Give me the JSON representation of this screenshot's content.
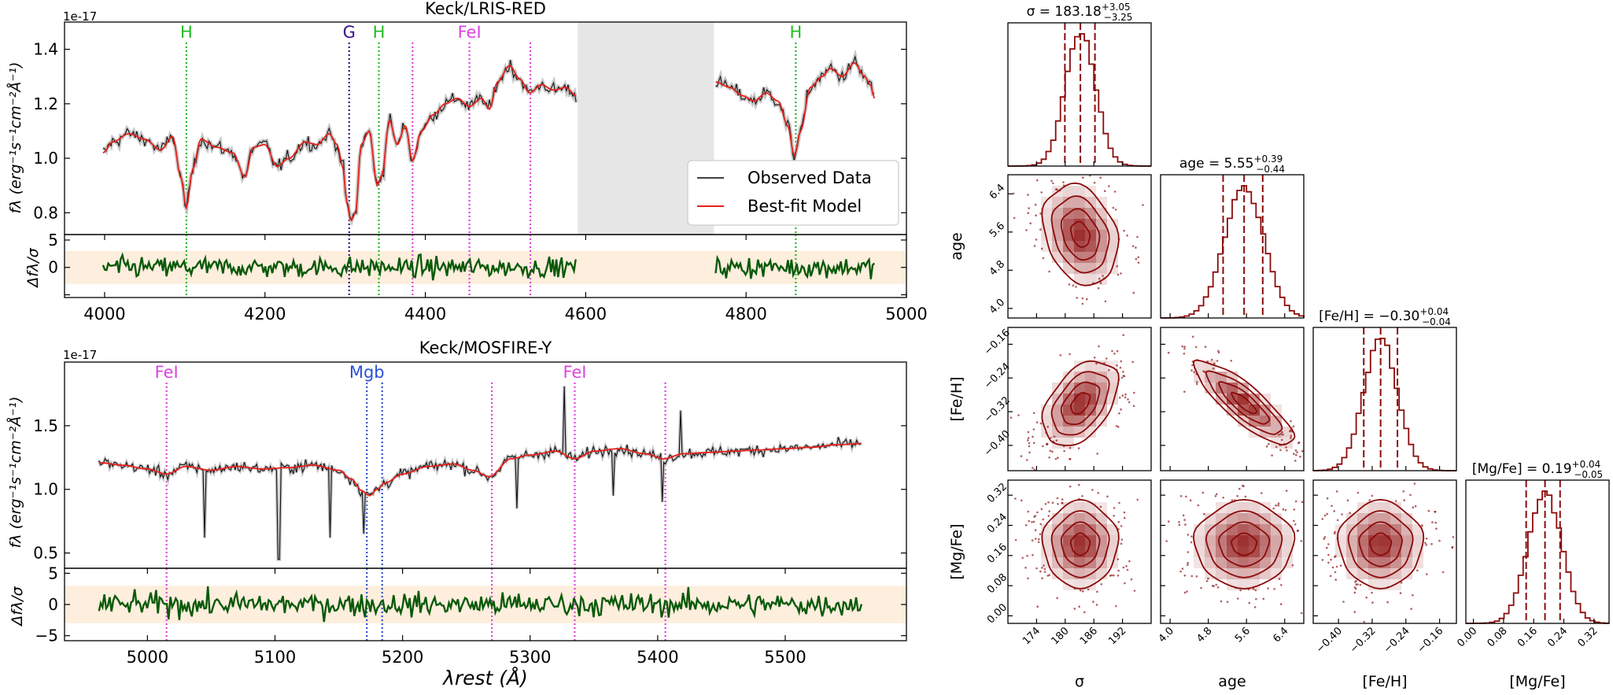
{
  "chart_data": [
    {
      "type": "line",
      "panel": "spectrum",
      "title": "Keck/LRIS-RED",
      "ylabel": "fλ (erg⁻¹s⁻¹cm⁻²Å⁻¹)",
      "y_offset_label": "1e-17",
      "xlim": [
        3950,
        5000
      ],
      "ylim": [
        0.72,
        1.5
      ],
      "yticks": [
        0.8,
        1.0,
        1.2,
        1.4
      ],
      "ytick_labels": [
        "0.8",
        "1.0",
        "1.2",
        "1.4"
      ],
      "masked_region": [
        4590,
        4760
      ],
      "segments": [
        [
          3998,
          4588
        ],
        [
          4762,
          4960
        ]
      ],
      "series": [
        {
          "name": "Observed Data",
          "color": "#000000"
        },
        {
          "name": "Best-fit Model",
          "color": "#e8201a"
        }
      ],
      "model_knots": [
        [
          3998,
          1.02
        ],
        [
          4010,
          1.06
        ],
        [
          4030,
          1.09
        ],
        [
          4050,
          1.07
        ],
        [
          4070,
          1.03
        ],
        [
          4085,
          1.08
        ],
        [
          4095,
          0.93
        ],
        [
          4102,
          0.82
        ],
        [
          4110,
          0.96
        ],
        [
          4120,
          1.07
        ],
        [
          4140,
          1.04
        ],
        [
          4160,
          1.02
        ],
        [
          4175,
          0.93
        ],
        [
          4185,
          1.04
        ],
        [
          4200,
          1.05
        ],
        [
          4215,
          0.97
        ],
        [
          4230,
          1.0
        ],
        [
          4250,
          1.06
        ],
        [
          4265,
          1.05
        ],
        [
          4280,
          1.09
        ],
        [
          4290,
          1.05
        ],
        [
          4297,
          0.97
        ],
        [
          4302,
          0.84
        ],
        [
          4307,
          0.77
        ],
        [
          4313,
          0.8
        ],
        [
          4320,
          1.05
        ],
        [
          4330,
          1.1
        ],
        [
          4340,
          0.9
        ],
        [
          4346,
          0.94
        ],
        [
          4355,
          1.14
        ],
        [
          4365,
          1.05
        ],
        [
          4375,
          1.12
        ],
        [
          4384,
          0.99
        ],
        [
          4395,
          1.1
        ],
        [
          4410,
          1.16
        ],
        [
          4425,
          1.2
        ],
        [
          4440,
          1.22
        ],
        [
          4455,
          1.19
        ],
        [
          4470,
          1.22
        ],
        [
          4480,
          1.18
        ],
        [
          4490,
          1.28
        ],
        [
          4505,
          1.34
        ],
        [
          4518,
          1.29
        ],
        [
          4530,
          1.24
        ],
        [
          4545,
          1.27
        ],
        [
          4560,
          1.25
        ],
        [
          4575,
          1.26
        ],
        [
          4588,
          1.23
        ],
        [
          4762,
          1.28
        ],
        [
          4780,
          1.26
        ],
        [
          4795,
          1.23
        ],
        [
          4810,
          1.21
        ],
        [
          4825,
          1.24
        ],
        [
          4840,
          1.21
        ],
        [
          4852,
          1.12
        ],
        [
          4860,
          1.01
        ],
        [
          4868,
          1.1
        ],
        [
          4880,
          1.26
        ],
        [
          4895,
          1.3
        ],
        [
          4905,
          1.33
        ],
        [
          4920,
          1.3
        ],
        [
          4935,
          1.35
        ],
        [
          4948,
          1.3
        ],
        [
          4955,
          1.27
        ],
        [
          4960,
          1.22
        ]
      ],
      "line_markers": [
        {
          "label": "H",
          "x": 4102,
          "color": "#22bb22",
          "show_label": true
        },
        {
          "label": "G",
          "x": 4305,
          "color": "#3b0d8c",
          "show_label": true
        },
        {
          "label": "H",
          "x": 4342,
          "color": "#22bb22",
          "show_label": true
        },
        {
          "label": "FeI",
          "x": 4384,
          "color": "#dd44dd",
          "show_label": false
        },
        {
          "label": "FeI",
          "x": 4455,
          "color": "#dd44dd",
          "show_label": true
        },
        {
          "label": "FeI",
          "x": 4531,
          "color": "#dd44dd",
          "show_label": false
        },
        {
          "label": "H",
          "x": 4862,
          "color": "#22bb22",
          "show_label": true
        }
      ]
    },
    {
      "type": "line",
      "panel": "residual",
      "ylabel": "Δfλ/σ",
      "xlim": [
        3950,
        5000
      ],
      "ylim": [
        -5.5,
        6
      ],
      "yticks": [
        -5,
        0,
        5
      ],
      "ytick_labels": [
        "",
        "0",
        "5"
      ],
      "band": [
        -3,
        3
      ],
      "band_color": "#fdeedd",
      "line_color": "#0a5a0a",
      "xticks": [
        4000,
        4200,
        4400,
        4600,
        4800,
        5000
      ],
      "xtick_labels": [
        "4000",
        "4200",
        "4400",
        "4600",
        "4800",
        "5000"
      ]
    },
    {
      "type": "line",
      "panel": "spectrum",
      "title": "Keck/MOSFIRE-Y",
      "ylabel": "fλ (erg⁻¹s⁻¹cm⁻²Å⁻¹)",
      "y_offset_label": "1e-17",
      "xlim": [
        4935,
        5595
      ],
      "ylim": [
        0.38,
        2.0
      ],
      "yticks": [
        0.5,
        1.0,
        1.5
      ],
      "ytick_labels": [
        "0.5",
        "1.0",
        "1.5"
      ],
      "segments": [
        [
          4962,
          5560
        ]
      ],
      "model_knots": [
        [
          4962,
          1.21
        ],
        [
          4980,
          1.19
        ],
        [
          5000,
          1.16
        ],
        [
          5015,
          1.12
        ],
        [
          5030,
          1.18
        ],
        [
          5050,
          1.15
        ],
        [
          5070,
          1.18
        ],
        [
          5090,
          1.16
        ],
        [
          5110,
          1.17
        ],
        [
          5130,
          1.19
        ],
        [
          5150,
          1.15
        ],
        [
          5160,
          1.08
        ],
        [
          5168,
          0.99
        ],
        [
          5174,
          0.95
        ],
        [
          5180,
          1.0
        ],
        [
          5186,
          1.05
        ],
        [
          5200,
          1.12
        ],
        [
          5220,
          1.18
        ],
        [
          5240,
          1.2
        ],
        [
          5255,
          1.15
        ],
        [
          5268,
          1.1
        ],
        [
          5285,
          1.24
        ],
        [
          5300,
          1.27
        ],
        [
          5320,
          1.3
        ],
        [
          5335,
          1.24
        ],
        [
          5350,
          1.3
        ],
        [
          5370,
          1.32
        ],
        [
          5390,
          1.28
        ],
        [
          5405,
          1.24
        ],
        [
          5420,
          1.28
        ],
        [
          5440,
          1.29
        ],
        [
          5460,
          1.3
        ],
        [
          5480,
          1.31
        ],
        [
          5500,
          1.32
        ],
        [
          5520,
          1.33
        ],
        [
          5540,
          1.35
        ],
        [
          5560,
          1.36
        ]
      ],
      "spikes": [
        [
          5045,
          0.62
        ],
        [
          5103,
          0.45
        ],
        [
          5143,
          0.62
        ],
        [
          5170,
          0.65
        ],
        [
          5327,
          1.81
        ],
        [
          5418,
          1.62
        ],
        [
          5404,
          0.9
        ],
        [
          5365,
          0.95
        ],
        [
          5290,
          0.85
        ]
      ],
      "line_markers": [
        {
          "label": "FeI",
          "x": 5015,
          "color": "#dd44dd",
          "show_label": true
        },
        {
          "label": "Mgb",
          "x": 5172,
          "color": "#2a4fd6",
          "show_label": true
        },
        {
          "label": "Mgb",
          "x": 5184,
          "color": "#2a4fd6",
          "show_label": false
        },
        {
          "label": "FeI",
          "x": 5270,
          "color": "#dd44dd",
          "show_label": false
        },
        {
          "label": "FeI",
          "x": 5335,
          "color": "#dd44dd",
          "show_label": true
        },
        {
          "label": "FeI",
          "x": 5406,
          "color": "#dd44dd",
          "show_label": false
        }
      ]
    },
    {
      "type": "line",
      "panel": "residual",
      "ylabel": "Δfλ/σ",
      "xlim": [
        4935,
        5595
      ],
      "ylim": [
        -5.8,
        5.8
      ],
      "yticks": [
        -5,
        0,
        5
      ],
      "ytick_labels": [
        "−5",
        "0",
        "5"
      ],
      "band": [
        -3,
        3
      ],
      "band_color": "#fdeedd",
      "line_color": "#0a5a0a",
      "xticks": [
        5000,
        5100,
        5200,
        5300,
        5400,
        5500
      ],
      "xtick_labels": [
        "5000",
        "5100",
        "5200",
        "5300",
        "5400",
        "5500"
      ],
      "xlabel": "λrest (Å)"
    },
    {
      "type": "corner",
      "color": "#8b0a0a",
      "parameters": [
        {
          "name": "σ",
          "label": "σ",
          "median": 183.18,
          "err_plus": 3.05,
          "err_minus": 3.25,
          "range": [
            168,
            198
          ],
          "ticks": [
            174,
            180,
            186,
            192
          ],
          "tick_labels": [
            "174",
            "180",
            "186",
            "192"
          ],
          "title_main": "σ = 183.18",
          "title_sup": "+3.05",
          "title_sub": "−3.25"
        },
        {
          "name": "age",
          "label": "age",
          "median": 5.55,
          "err_plus": 0.39,
          "err_minus": 0.44,
          "range": [
            3.8,
            6.8
          ],
          "ticks": [
            4.0,
            4.8,
            5.6,
            6.4
          ],
          "tick_labels": [
            "4.0",
            "4.8",
            "5.6",
            "6.4"
          ],
          "title_main": "age = 5.55",
          "title_sup": "+0.39",
          "title_sub": "−0.44"
        },
        {
          "name": "[Fe/H]",
          "label": "[Fe/H]",
          "median": -0.3,
          "err_plus": 0.04,
          "err_minus": 0.04,
          "range": [
            -0.46,
            -0.12
          ],
          "ticks": [
            -0.4,
            -0.32,
            -0.24,
            -0.16
          ],
          "tick_labels": [
            "−0.40",
            "−0.32",
            "−0.24",
            "−0.16"
          ],
          "title_main": "[Fe/H] = −0.30",
          "title_sup": "+0.04",
          "title_sub": "−0.04"
        },
        {
          "name": "[Mg/Fe]",
          "label": "[Mg/Fe]",
          "median": 0.19,
          "err_plus": 0.04,
          "err_minus": 0.05,
          "range": [
            -0.02,
            0.36
          ],
          "ticks": [
            0.0,
            0.08,
            0.16,
            0.24,
            0.32
          ],
          "tick_labels": [
            "0.00",
            "0.08",
            "0.16",
            "0.24",
            "0.32"
          ],
          "title_main": "[Mg/Fe] = 0.19",
          "title_sup": "+0.04",
          "title_sub": "−0.05"
        }
      ],
      "correlations": {
        "1,0": -0.25,
        "2,0": 0.45,
        "2,1": -0.85,
        "3,0": 0.0,
        "3,1": 0.0,
        "3,2": 0.0
      }
    }
  ]
}
